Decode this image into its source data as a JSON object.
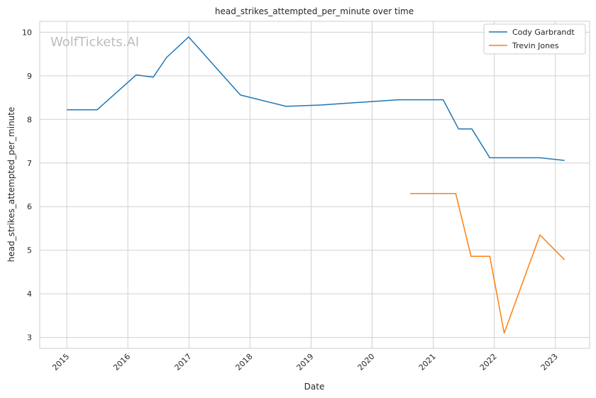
{
  "chart_data": {
    "type": "line",
    "title": "head_strikes_attempted_per_minute over time",
    "xlabel": "Date",
    "ylabel": "head_strikes_attempted_per_minute",
    "watermark": "WolfTickets.AI",
    "x_ticks": [
      "2015",
      "2016",
      "2017",
      "2018",
      "2019",
      "2020",
      "2021",
      "2022",
      "2023"
    ],
    "y_ticks": [
      3,
      4,
      5,
      6,
      7,
      8,
      9,
      10
    ],
    "xlim": [
      "2014-07-23",
      "2023-07-25"
    ],
    "ylim": [
      2.75,
      10.25
    ],
    "grid": true,
    "legend_position": "top-right",
    "series": [
      {
        "name": "Cody Garbrandt",
        "color": "#1f77b4",
        "points": [
          {
            "x": "2015-01-01",
            "y": 8.22
          },
          {
            "x": "2015-07-01",
            "y": 8.22
          },
          {
            "x": "2016-02-20",
            "y": 9.02
          },
          {
            "x": "2016-06-01",
            "y": 8.97
          },
          {
            "x": "2016-08-20",
            "y": 9.42
          },
          {
            "x": "2016-12-30",
            "y": 9.89
          },
          {
            "x": "2017-11-04",
            "y": 8.56
          },
          {
            "x": "2018-08-04",
            "y": 8.3
          },
          {
            "x": "2019-03-01",
            "y": 8.33
          },
          {
            "x": "2020-06-06",
            "y": 8.45
          },
          {
            "x": "2021-03-01",
            "y": 8.45
          },
          {
            "x": "2021-06-01",
            "y": 7.78
          },
          {
            "x": "2021-08-20",
            "y": 7.78
          },
          {
            "x": "2021-12-05",
            "y": 7.12
          },
          {
            "x": "2022-10-01",
            "y": 7.12
          },
          {
            "x": "2023-02-25",
            "y": 7.06
          }
        ]
      },
      {
        "name": "Trevin Jones",
        "color": "#ff7f0e",
        "points": [
          {
            "x": "2020-08-15",
            "y": 6.3
          },
          {
            "x": "2021-05-15",
            "y": 6.3
          },
          {
            "x": "2021-08-15",
            "y": 4.86
          },
          {
            "x": "2021-12-05",
            "y": 4.86
          },
          {
            "x": "2022-03-01",
            "y": 3.1
          },
          {
            "x": "2022-10-01",
            "y": 5.35
          },
          {
            "x": "2023-02-25",
            "y": 4.78
          }
        ]
      }
    ]
  }
}
